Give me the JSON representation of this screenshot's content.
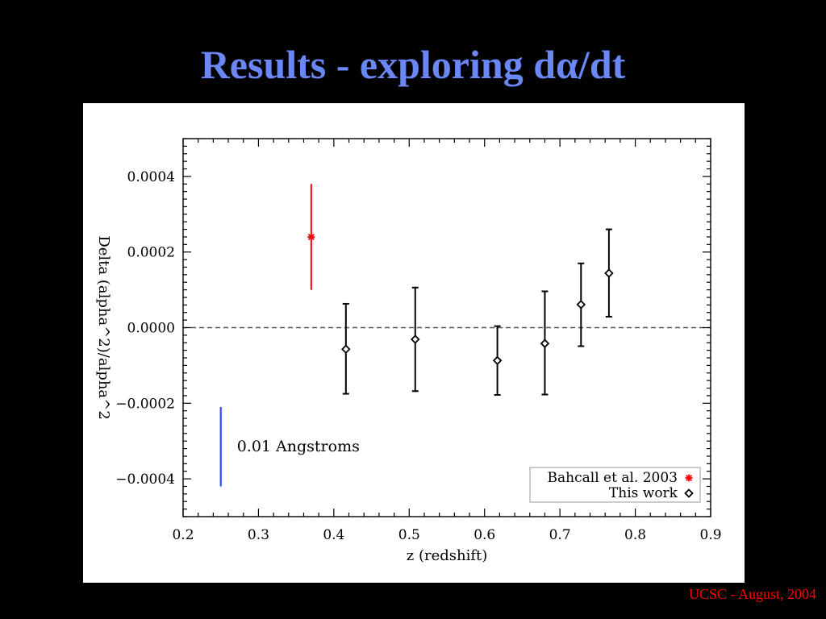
{
  "slide": {
    "title_prefix": "Results - exploring d",
    "title_symbol": "α",
    "title_suffix": "/dt",
    "title_color": "#6b86f5",
    "footer": "UCSC - August, 2004",
    "footer_color": "#ff0000"
  },
  "chart_data": {
    "type": "scatter",
    "xlabel": "z (redshift)",
    "ylabel": "Delta (alpha^2)/alpha^2",
    "xlim": [
      0.2,
      0.9
    ],
    "ylim": [
      -0.0005,
      0.0005
    ],
    "xticks": [
      0.2,
      0.3,
      0.4,
      0.5,
      0.6,
      0.7,
      0.8,
      0.9
    ],
    "xtick_labels": [
      "0.2",
      "0.3",
      "0.4",
      "0.5",
      "0.6",
      "0.7",
      "0.8",
      "0.9"
    ],
    "yticks": [
      -0.0004,
      -0.0002,
      0.0,
      0.0002,
      0.0004
    ],
    "ytick_labels": [
      "−0.0004",
      "−0.0002",
      "0.0000",
      "0.0002",
      "0.0004"
    ],
    "grid": false,
    "reference_line": {
      "y": 0.0,
      "style": "dashed"
    },
    "series": [
      {
        "name": "Bahcall et al. 2003",
        "color": "#ff0000",
        "marker": "asterisk",
        "points": [
          {
            "x": 0.37,
            "y": 0.00024,
            "yerr_low": 0.0001,
            "yerr_high": 0.00038
          }
        ]
      },
      {
        "name": "This work",
        "color": "#000000",
        "marker": "diamond",
        "points": [
          {
            "x": 0.416,
            "y": -5.7e-05,
            "yerr_low": -0.000175,
            "yerr_high": 6.3e-05
          },
          {
            "x": 0.508,
            "y": -3.1e-05,
            "yerr_low": -0.000168,
            "yerr_high": 0.000106
          },
          {
            "x": 0.617,
            "y": -8.7e-05,
            "yerr_low": -0.000178,
            "yerr_high": 4e-06
          },
          {
            "x": 0.68,
            "y": -4.2e-05,
            "yerr_low": -0.000177,
            "yerr_high": 9.6e-05
          },
          {
            "x": 0.728,
            "y": 6.1e-05,
            "yerr_low": -4.9e-05,
            "yerr_high": 0.00017
          },
          {
            "x": 0.765,
            "y": 0.000144,
            "yerr_low": 2.9e-05,
            "yerr_high": 0.00026
          }
        ]
      }
    ],
    "scale_bar": {
      "label": "0.01 Angstroms",
      "color": "#3344ff",
      "x": 0.25,
      "y_low": -0.00042,
      "y_high": -0.00021
    },
    "legend": {
      "position": "bottom-right",
      "entries": [
        "Bahcall et al. 2003",
        "This work"
      ]
    }
  }
}
